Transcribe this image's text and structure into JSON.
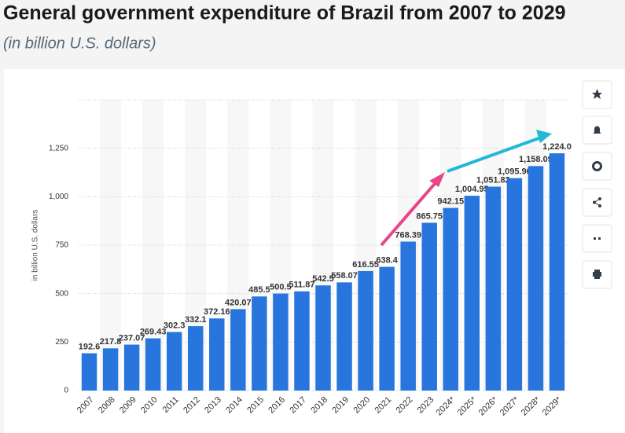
{
  "chart_data": {
    "type": "bar",
    "title": "General government expenditure of Brazil from 2007 to 2029",
    "subtitle": "(in billion U.S. dollars)",
    "y_label": "in billion U.S. dollars",
    "categories": [
      "2007",
      "2008",
      "2009",
      "2010",
      "2011",
      "2012",
      "2013",
      "2014",
      "2015",
      "2016",
      "2017",
      "2018",
      "2019",
      "2020",
      "2021",
      "2022",
      "2023",
      "2024*",
      "2025*",
      "2026*",
      "2027*",
      "2028*",
      "2029*"
    ],
    "values": [
      192.6,
      217.8,
      237.07,
      269.43,
      302.3,
      332.1,
      372.16,
      420.07,
      485.5,
      500.5,
      511.87,
      542.5,
      558.07,
      616.55,
      638.4,
      768.39,
      865.75,
      942.15,
      1004.95,
      1051.82,
      1095.96,
      1158.09,
      1224.0
    ],
    "value_labels": [
      "192.6",
      "217.8",
      "237.07",
      "269.43",
      "302.3",
      "332.1",
      "372.16",
      "420.07",
      "485.5",
      "500.5",
      "511.87",
      "542.5",
      "558.07",
      "616.55",
      "638.4",
      "768.39",
      "865.75",
      "942.15",
      "1,004.95",
      "1,051.82",
      "1,095.96",
      "1,158.09",
      "1,224.0"
    ],
    "color": "#2876dd",
    "ylim": [
      0,
      1500
    ],
    "yticks": [
      0,
      250,
      500,
      750,
      {
        "value": 1000,
        "label": "1,000"
      },
      {
        "value": 1250,
        "label": "1,250"
      }
    ],
    "grid": true
  }
}
